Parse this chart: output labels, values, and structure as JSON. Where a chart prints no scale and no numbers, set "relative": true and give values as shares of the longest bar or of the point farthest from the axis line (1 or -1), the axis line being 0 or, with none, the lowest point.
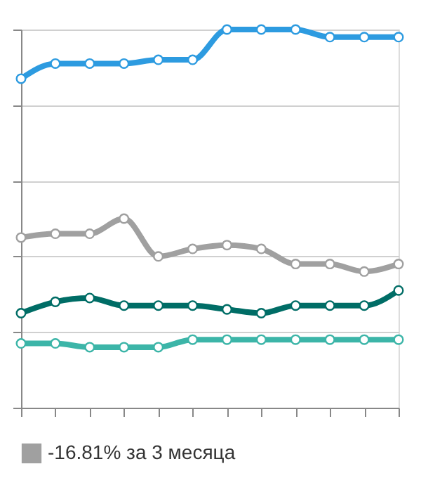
{
  "chart_data": {
    "type": "line",
    "relative": true,
    "categories": [
      null,
      null,
      null,
      null,
      null,
      null,
      null,
      null,
      null,
      null,
      null,
      null
    ],
    "series": [
      {
        "color": "#2d9be0",
        "values": [
          0.87,
          0.91,
          0.91,
          0.91,
          0.92,
          0.92,
          1.0,
          1.0,
          1.0,
          0.98,
          0.98,
          0.98
        ]
      },
      {
        "name": "-16.81% за 3 месяца",
        "color": "#a0a0a0",
        "values": [
          0.45,
          0.46,
          0.46,
          0.5,
          0.4,
          0.42,
          0.43,
          0.42,
          0.38,
          0.38,
          0.36,
          0.38
        ]
      },
      {
        "color": "#006d66",
        "values": [
          0.25,
          0.28,
          0.29,
          0.27,
          0.27,
          0.27,
          0.26,
          0.25,
          0.27,
          0.27,
          0.27,
          0.31
        ]
      },
      {
        "color": "#3cb5a8",
        "values": [
          0.17,
          0.17,
          0.16,
          0.16,
          0.16,
          0.18,
          0.18,
          0.18,
          0.18,
          0.18,
          0.18,
          0.18
        ]
      }
    ],
    "grid": "y",
    "legend": "bottom",
    "marker": "circle",
    "line_style": "solid"
  }
}
